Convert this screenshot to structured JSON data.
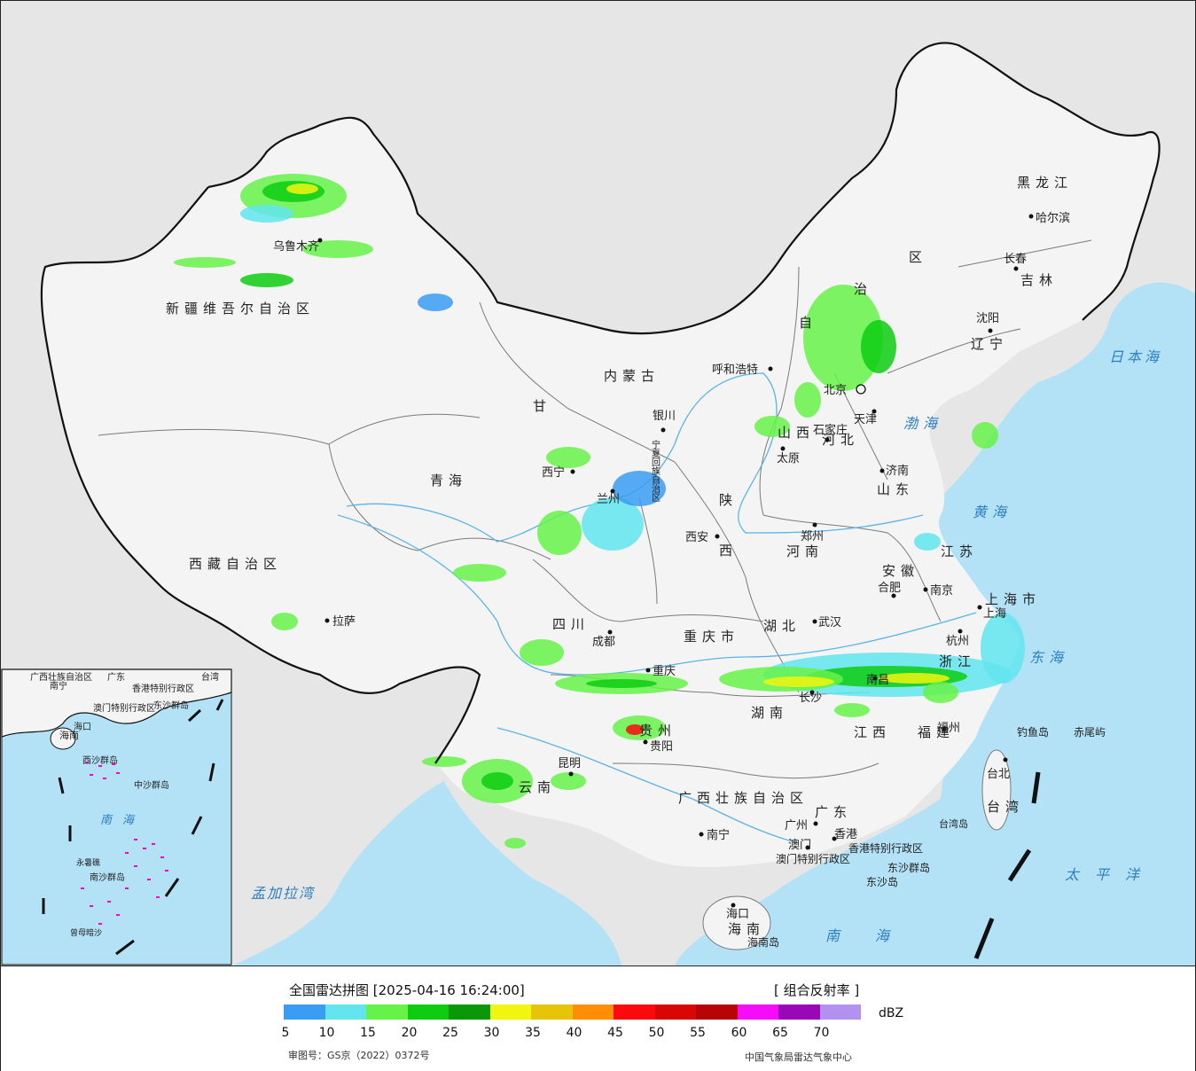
{
  "colors": {
    "sea": "#b3e2f7",
    "land_outside": "#e6e6e6",
    "china_land": "#f4f4f4",
    "border": "#111111",
    "province_border": "#7a7a7a",
    "river": "#5ab4e6"
  },
  "map": {
    "provinces": [
      {
        "name": "新疆维吾尔自治区"
      },
      {
        "name": "西藏自治区"
      },
      {
        "name": "青海"
      },
      {
        "name": "甘"
      },
      {
        "name": "内蒙古"
      },
      {
        "name": "四川"
      },
      {
        "name": "陕"
      },
      {
        "name": "西"
      },
      {
        "name": "山西"
      },
      {
        "name": "河北"
      },
      {
        "name": "河南"
      },
      {
        "name": "湖北"
      },
      {
        "name": "湖南"
      },
      {
        "name": "贵州"
      },
      {
        "name": "云南"
      },
      {
        "name": "广西壮族自治区"
      },
      {
        "name": "广东"
      },
      {
        "name": "江西"
      },
      {
        "name": "福建"
      },
      {
        "name": "浙江"
      },
      {
        "name": "安徽"
      },
      {
        "name": "江苏"
      },
      {
        "name": "山东"
      },
      {
        "name": "辽宁"
      },
      {
        "name": "吉林"
      },
      {
        "name": "黑龙江"
      },
      {
        "name": "重庆市"
      },
      {
        "name": "上海市"
      },
      {
        "name": "海南"
      },
      {
        "name": "台湾"
      },
      {
        "name": "区"
      },
      {
        "name": "治"
      },
      {
        "name": "自"
      },
      {
        "name": "宁夏回族自治区"
      },
      {
        "name": "香港特别行政区"
      },
      {
        "name": "澳门特别行政区"
      }
    ],
    "cities": [
      {
        "name": "乌鲁木齐"
      },
      {
        "name": "拉萨"
      },
      {
        "name": "西宁"
      },
      {
        "name": "兰州"
      },
      {
        "name": "银川"
      },
      {
        "name": "呼和浩特"
      },
      {
        "name": "北京"
      },
      {
        "name": "天津"
      },
      {
        "name": "石家庄"
      },
      {
        "name": "太原"
      },
      {
        "name": "济南"
      },
      {
        "name": "郑州"
      },
      {
        "name": "西安"
      },
      {
        "name": "成都"
      },
      {
        "name": "重庆"
      },
      {
        "name": "武汉"
      },
      {
        "name": "合肥"
      },
      {
        "name": "南京"
      },
      {
        "name": "上海"
      },
      {
        "name": "杭州"
      },
      {
        "name": "南昌"
      },
      {
        "name": "长沙"
      },
      {
        "name": "贵阳"
      },
      {
        "name": "昆明"
      },
      {
        "name": "南宁"
      },
      {
        "name": "广州"
      },
      {
        "name": "香港"
      },
      {
        "name": "澳门"
      },
      {
        "name": "福州"
      },
      {
        "name": "台北"
      },
      {
        "name": "海口"
      },
      {
        "name": "沈阳"
      },
      {
        "name": "长春"
      },
      {
        "name": "哈尔滨"
      }
    ],
    "seas": [
      {
        "name": "渤海"
      },
      {
        "name": "黄海"
      },
      {
        "name": "东海"
      },
      {
        "name": "南海"
      },
      {
        "name": "日本海"
      },
      {
        "name": "太平洋"
      },
      {
        "name": "孟加拉湾"
      }
    ],
    "islands": [
      {
        "name": "钓鱼岛"
      },
      {
        "name": "赤尾屿"
      },
      {
        "name": "台湾岛"
      },
      {
        "name": "东沙群岛"
      },
      {
        "name": "东沙岛"
      },
      {
        "name": "海南岛"
      }
    ],
    "inset": {
      "labels": [
        "广西壮族自治区",
        "广东",
        "南宁",
        "台湾",
        "香港特别行政区",
        "澳门特别行政区",
        "东沙群岛",
        "海口",
        "海南",
        "西沙群岛",
        "中沙群岛",
        "南沙群岛",
        "永暑礁",
        "曾母暗沙",
        "南海"
      ]
    }
  },
  "legend": {
    "title": "全国雷达拼图 [2025-04-16 16:24:00]",
    "product": "[ 组合反射率 ]",
    "unit": "dBZ",
    "ticks": [
      "5",
      "10",
      "15",
      "20",
      "25",
      "30",
      "35",
      "40",
      "45",
      "50",
      "55",
      "60",
      "65",
      "70"
    ],
    "colors": [
      "#3a9cf2",
      "#62e5ef",
      "#66f249",
      "#0ecc12",
      "#0a9708",
      "#f2f50f",
      "#e7c408",
      "#fd8e06",
      "#fb0a0d",
      "#d90606",
      "#b80404",
      "#f60cf8",
      "#9a07b8",
      "#b392ef"
    ],
    "approval_number": "审图号：GS京（2022）0372号",
    "source": "中国气象局雷达气象中心"
  }
}
